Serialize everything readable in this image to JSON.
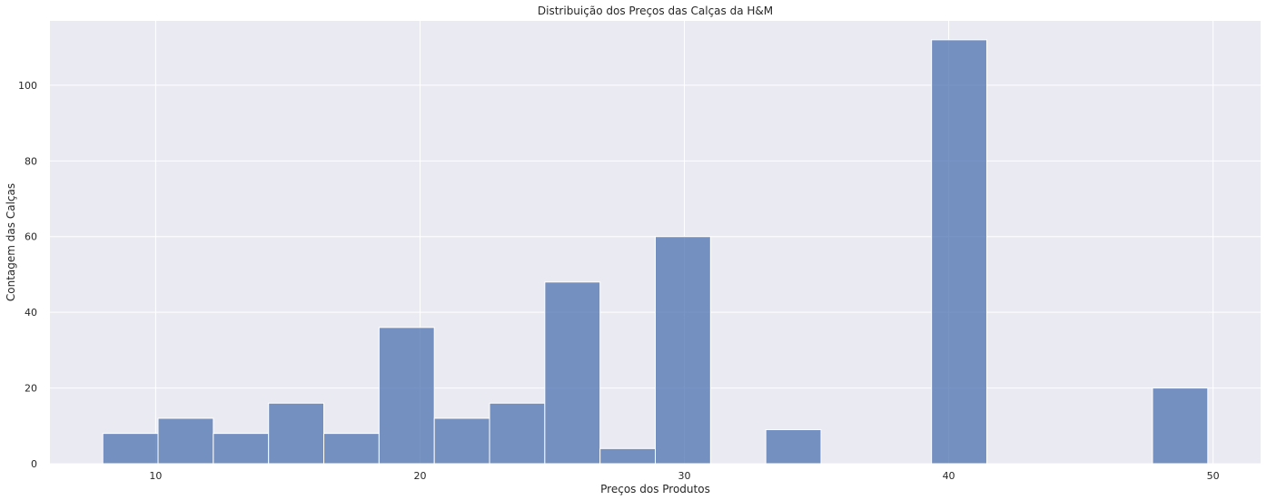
{
  "chart_data": {
    "type": "bar",
    "title": "Distribuição dos Preços das Calças da H&M",
    "xlabel": "Preços dos Produtos",
    "ylabel": "Contagem das Calças",
    "xlim": [
      6,
      51.8
    ],
    "ylim": [
      0,
      117
    ],
    "xticks": [
      10,
      20,
      30,
      40,
      50
    ],
    "yticks": [
      0,
      20,
      40,
      60,
      80,
      100
    ],
    "grid": true,
    "bins": [
      {
        "x0": 8.0,
        "x1": 10.09,
        "count": 8
      },
      {
        "x0": 10.09,
        "x1": 12.18,
        "count": 12
      },
      {
        "x0": 12.18,
        "x1": 14.27,
        "count": 8
      },
      {
        "x0": 14.27,
        "x1": 16.36,
        "count": 16
      },
      {
        "x0": 16.36,
        "x1": 18.45,
        "count": 8
      },
      {
        "x0": 18.45,
        "x1": 20.54,
        "count": 36
      },
      {
        "x0": 20.54,
        "x1": 22.63,
        "count": 12
      },
      {
        "x0": 22.63,
        "x1": 24.72,
        "count": 16
      },
      {
        "x0": 24.72,
        "x1": 26.81,
        "count": 48
      },
      {
        "x0": 26.81,
        "x1": 28.9,
        "count": 4
      },
      {
        "x0": 28.9,
        "x1": 30.99,
        "count": 60
      },
      {
        "x0": 33.08,
        "x1": 35.17,
        "count": 9
      },
      {
        "x0": 39.35,
        "x1": 41.44,
        "count": 112
      },
      {
        "x0": 47.71,
        "x1": 49.8,
        "count": 20
      }
    ],
    "colors": {
      "bar": "#4c72b0",
      "background": "#eaeaf2",
      "grid": "#ffffff"
    }
  }
}
